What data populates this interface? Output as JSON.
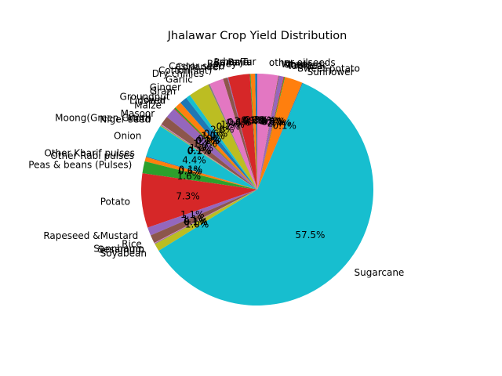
{
  "chart_data": {
    "type": "pie",
    "title": "Jhalawar Crop Yield Distribution",
    "start_angle_deg": 90,
    "direction": "counterclockwise",
    "autopct_format": "{:.1f}%",
    "slices": [
      {
        "label": "Arhar/Tur",
        "value": 0.3,
        "color": "#1f77b4"
      },
      {
        "label": "Bajra",
        "value": 0.6,
        "color": "#ff7f0e"
      },
      {
        "label": "Banana",
        "value": 0.1,
        "color": "#2ca02c"
      },
      {
        "label": "Barley",
        "value": 2.9,
        "color": "#d62728"
      },
      {
        "label": "Castor seed",
        "value": 0.1,
        "color": "#9467bd"
      },
      {
        "label": "Coriander",
        "value": 0.6,
        "color": "#8c564b"
      },
      {
        "label": "Cotton(lint)",
        "value": 1.9,
        "color": "#e377c2"
      },
      {
        "label": "Dry chillies",
        "value": 0.2,
        "color": "#7f7f7f"
      },
      {
        "label": "Garlic",
        "value": 2.8,
        "color": "#bcbd22"
      },
      {
        "label": "Ginger",
        "value": 0.6,
        "color": "#17becf"
      },
      {
        "label": "Gram",
        "value": 1.0,
        "color": "#1f77b4"
      },
      {
        "label": "Groundnut",
        "value": 0.9,
        "color": "#ff7f0e"
      },
      {
        "label": "Jowar",
        "value": 0.2,
        "color": "#2ca02c"
      },
      {
        "label": "Linseed",
        "value": 0.1,
        "color": "#d62728"
      },
      {
        "label": "Maize",
        "value": 1.4,
        "color": "#9467bd"
      },
      {
        "label": "Masoor",
        "value": 1.2,
        "color": "#8c564b"
      },
      {
        "label": "Moong(Green Gram)",
        "value": 0.1,
        "color": "#e377c2"
      },
      {
        "label": "Moth",
        "value": 0.1,
        "color": "#7f7f7f"
      },
      {
        "label": "Niger seed",
        "value": 0.1,
        "color": "#bcbd22"
      },
      {
        "label": "Onion",
        "value": 4.4,
        "color": "#17becf"
      },
      {
        "label": "Other Kharif pulses",
        "value": 0.1,
        "color": "#1f77b4"
      },
      {
        "label": "Other Rabi pulses",
        "value": 0.6,
        "color": "#ff7f0e"
      },
      {
        "label": "Peas & beans (Pulses)",
        "value": 1.6,
        "color": "#2ca02c"
      },
      {
        "label": "Potato",
        "value": 7.3,
        "color": "#d62728"
      },
      {
        "label": "Rapeseed &Mustard",
        "value": 1.1,
        "color": "#9467bd"
      },
      {
        "label": "Rice",
        "value": 1.1,
        "color": "#8c564b"
      },
      {
        "label": "Sannhamp",
        "value": 0.1,
        "color": "#e377c2"
      },
      {
        "label": "Sesamum",
        "value": 0.1,
        "color": "#7f7f7f"
      },
      {
        "label": "Soyabean",
        "value": 1.0,
        "color": "#bcbd22"
      },
      {
        "label": "Sugarcane",
        "value": 57.5,
        "color": "#17becf"
      },
      {
        "label": "Sunflower",
        "value": 0.1,
        "color": "#1f77b4"
      },
      {
        "label": "Sweet potato",
        "value": 2.4,
        "color": "#ff7f0e"
      },
      {
        "label": "Tapioca",
        "value": 0.1,
        "color": "#2ca02c"
      },
      {
        "label": "Turmeric",
        "value": 0.1,
        "color": "#d62728"
      },
      {
        "label": "Urad",
        "value": 0.6,
        "color": "#9467bd"
      },
      {
        "label": "Wheat",
        "value": 0.1,
        "color": "#8c564b"
      },
      {
        "label": "other oilseeds",
        "value": 2.8,
        "color": "#e377c2"
      }
    ]
  }
}
